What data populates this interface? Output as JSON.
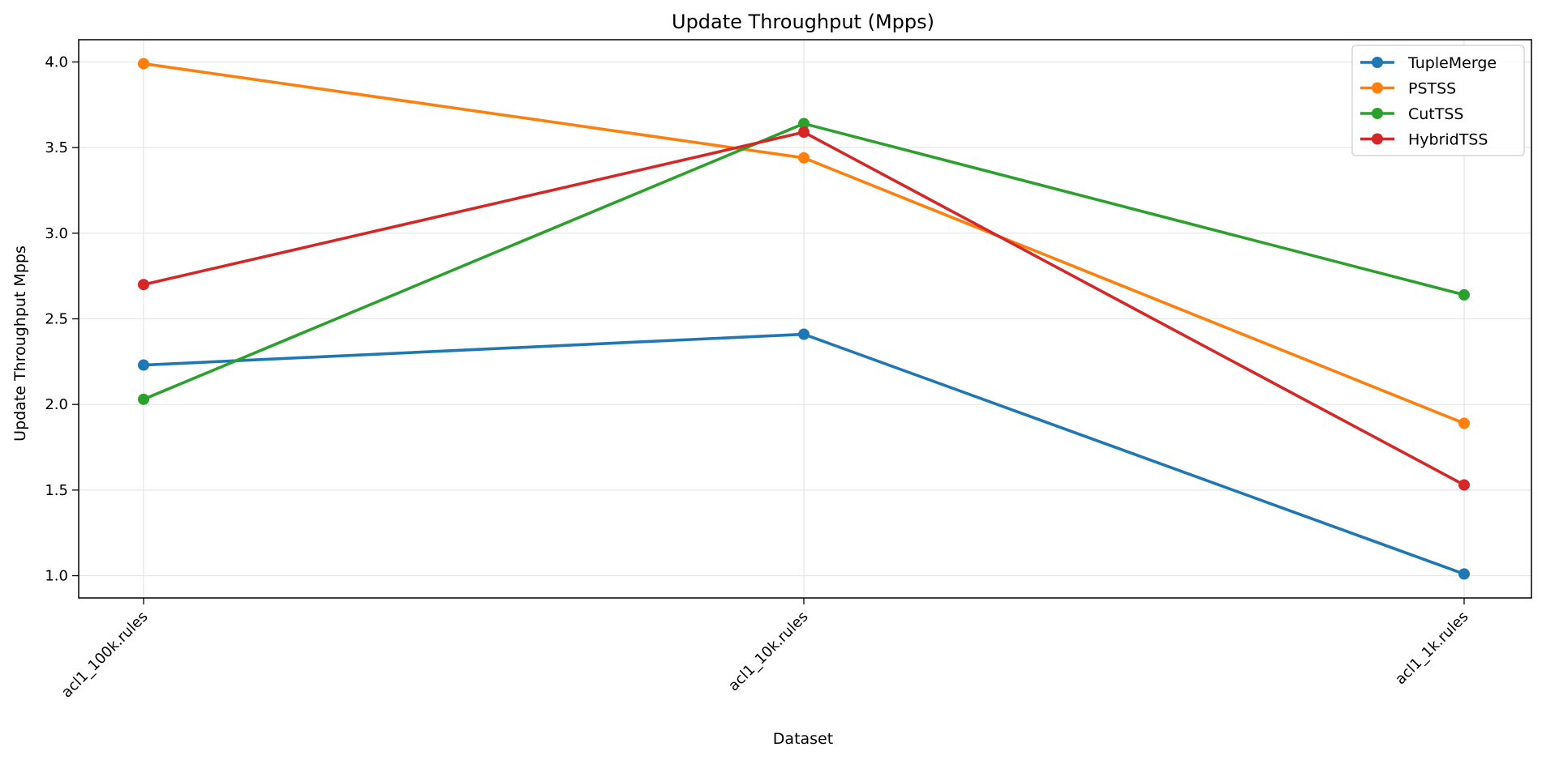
{
  "chart_data": {
    "type": "line",
    "title": "Update Throughput (Mpps)",
    "xlabel": "Dataset",
    "ylabel": "Update Throughput Mpps",
    "categories": [
      "acl1_100k.rules",
      "acl1_10k.rules",
      "acl1_1k.rules"
    ],
    "ylim": [
      0.87,
      4.13
    ],
    "yticks": [
      "1.0",
      "1.5",
      "2.0",
      "2.5",
      "3.0",
      "3.5",
      "4.0"
    ],
    "grid": true,
    "legend_position": "top-right",
    "series": [
      {
        "name": "TupleMerge",
        "color": "#1f77b4",
        "values": [
          2.23,
          2.41,
          1.01
        ]
      },
      {
        "name": "PSTSS",
        "color": "#ff7f0e",
        "values": [
          3.99,
          3.44,
          1.89
        ]
      },
      {
        "name": "CutTSS",
        "color": "#2ca02c",
        "values": [
          2.03,
          3.64,
          2.64
        ]
      },
      {
        "name": "HybridTSS",
        "color": "#d62728",
        "values": [
          2.7,
          3.59,
          1.53
        ]
      }
    ]
  }
}
